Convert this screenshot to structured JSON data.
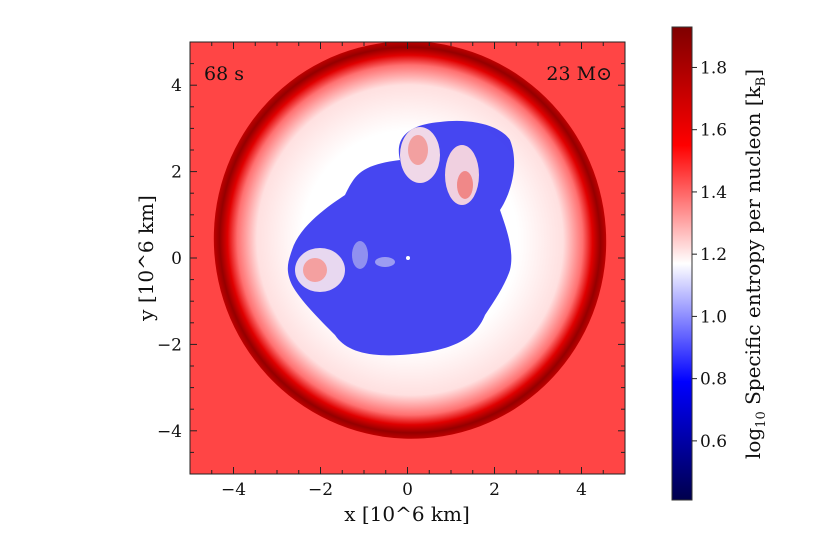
{
  "chart_data": {
    "type": "heatmap",
    "description_quantity": "log10 specific entropy per nucleon",
    "xlabel": "x [10^6 km]",
    "ylabel": "y [10^6 km]",
    "xlim": [
      -5,
      5
    ],
    "ylim": [
      -5,
      5
    ],
    "xticks": [
      -4,
      -2,
      0,
      2,
      4
    ],
    "yticks": [
      -4,
      -2,
      0,
      2,
      4
    ],
    "xtick_labels": [
      "−4",
      "−2",
      "0",
      "2",
      "4"
    ],
    "ytick_labels": [
      "−4",
      "−2",
      "0",
      "2",
      "4"
    ],
    "annotations": {
      "time": "68 s",
      "mass": "23 M⊙"
    },
    "colorbar": {
      "label": "log10 Specific entropy per nucleon [kB]",
      "label_parts": {
        "log": "log",
        "sub10": "10",
        "main": " Specific entropy per nucleon [k",
        "subB": "B",
        "close": "]"
      },
      "range": [
        0.41,
        1.93
      ],
      "ticks": [
        0.6,
        0.8,
        1.0,
        1.2,
        1.4,
        1.6,
        1.8
      ],
      "tick_labels": [
        "0.6",
        "0.8",
        "1.0",
        "1.2",
        "1.4",
        "1.6",
        "1.8"
      ],
      "colormap": "seismic",
      "colors": [
        "#00004c",
        "#0000ff",
        "#ffffff",
        "#ff0000",
        "#7f0000"
      ]
    },
    "grid": false
  }
}
